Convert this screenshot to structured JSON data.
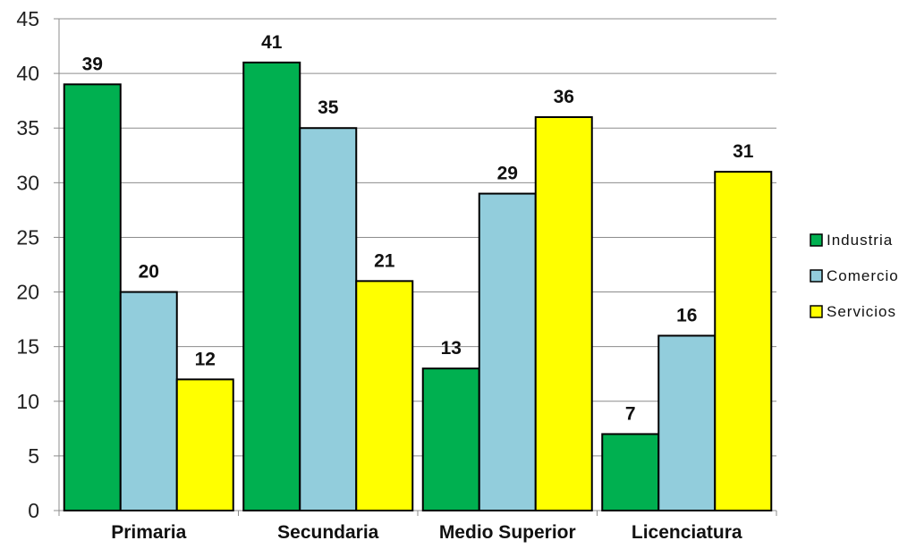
{
  "chart_data": {
    "type": "bar",
    "categories": [
      "Primaria",
      "Secundaria",
      "Medio Superior",
      "Licenciatura"
    ],
    "series": [
      {
        "name": "Industria",
        "values": [
          39,
          41,
          13,
          7
        ],
        "color": "#00B050"
      },
      {
        "name": "Comercio",
        "values": [
          20,
          35,
          29,
          16
        ],
        "color": "#92CDDC"
      },
      {
        "name": "Servicios",
        "values": [
          12,
          21,
          36,
          31
        ],
        "color": "#FFFF00"
      }
    ],
    "title": "",
    "xlabel": "",
    "ylabel": "",
    "ylim": [
      0,
      45
    ],
    "yticks": [
      0,
      5,
      10,
      15,
      20,
      25,
      30,
      35,
      40,
      45
    ],
    "grid": true,
    "legend_position": "right"
  }
}
